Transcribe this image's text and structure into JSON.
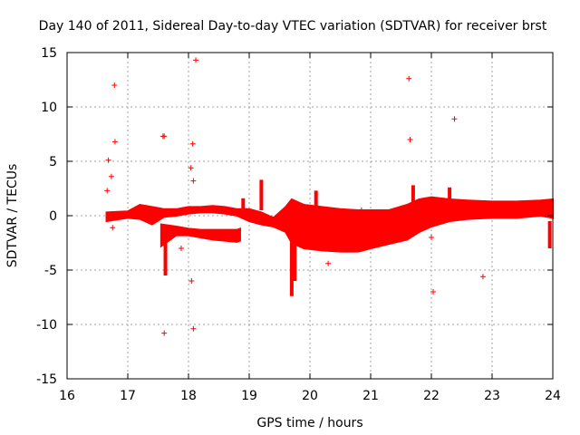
{
  "chart_data": {
    "type": "scatter",
    "title": "Day 140 of 2011, Sidereal Day-to-day VTEC variation (SDTVAR) for receiver brst",
    "xlabel": "GPS time / hours",
    "ylabel": "SDTVAR / TECUs",
    "xlim": [
      16,
      24
    ],
    "ylim": [
      -15,
      15
    ],
    "x_ticks": [
      16,
      17,
      18,
      19,
      20,
      21,
      22,
      23,
      24
    ],
    "y_ticks": [
      -15,
      -10,
      -5,
      0,
      5,
      10,
      15
    ],
    "grid": true,
    "marker": "+",
    "color": "#ff0000",
    "outliers": {
      "x": [
        16.78,
        17.6,
        18.12,
        17.58,
        18.07,
        16.68,
        16.73,
        16.66,
        16.79,
        18.04,
        18.08,
        21.63,
        21.65,
        22.38,
        22.85,
        22.0,
        22.03,
        17.88,
        18.05,
        17.6,
        18.08,
        20.3,
        16.75,
        20.85
      ],
      "y": [
        12.0,
        7.3,
        14.3,
        7.3,
        6.6,
        5.1,
        3.6,
        2.3,
        6.8,
        4.4,
        3.2,
        12.6,
        7.0,
        8.9,
        -5.6,
        -2.0,
        -7.0,
        -3.0,
        -6.0,
        -10.8,
        -10.4,
        -4.4,
        -1.1,
        0.5
      ]
    },
    "dense_bands": [
      {
        "x": [
          16.65,
          17.0,
          17.2,
          17.4,
          17.6,
          17.8,
          18.0,
          18.2,
          18.4,
          18.6,
          18.8,
          19.0,
          19.2,
          19.4,
          19.6,
          19.7,
          19.9,
          20.2,
          20.5,
          20.8,
          21.0,
          21.3,
          21.6,
          21.8,
          22.0,
          22.3,
          22.6,
          23.0,
          23.4,
          23.8,
          24.0
        ],
        "low": [
          -0.5,
          -0.2,
          -0.3,
          -0.8,
          -0.1,
          0.0,
          0.2,
          0.3,
          0.3,
          0.2,
          0.0,
          -0.5,
          -0.8,
          -1.0,
          -1.5,
          -2.5,
          -3.0,
          -3.2,
          -3.3,
          -3.3,
          -3.0,
          -2.6,
          -2.2,
          -1.5,
          -1.0,
          -0.5,
          -0.3,
          -0.2,
          -0.2,
          0.0,
          -0.2
        ],
        "high": [
          0.3,
          0.4,
          1.0,
          0.8,
          0.6,
          0.6,
          0.8,
          0.8,
          0.9,
          0.8,
          0.6,
          0.6,
          0.3,
          -0.2,
          0.8,
          1.5,
          1.0,
          0.8,
          0.6,
          0.5,
          0.5,
          0.5,
          1.0,
          1.5,
          1.7,
          1.5,
          1.4,
          1.3,
          1.3,
          1.4,
          1.5
        ]
      },
      {
        "x": [
          17.55,
          17.8,
          18.0,
          18.2,
          18.4,
          18.6,
          18.8,
          18.85
        ],
        "low": [
          -2.8,
          -1.8,
          -1.8,
          -2.0,
          -2.2,
          -2.3,
          -2.4,
          -2.3
        ],
        "high": [
          -0.8,
          -1.0,
          -1.2,
          -1.3,
          -1.3,
          -1.3,
          -1.3,
          -1.2
        ]
      }
    ],
    "spikes": [
      {
        "x": 17.62,
        "y_from": -1.5,
        "y_to": -5.5
      },
      {
        "x": 19.7,
        "y_from": -1.5,
        "y_to": -7.4
      },
      {
        "x": 19.75,
        "y_from": -2.0,
        "y_to": -6.0
      },
      {
        "x": 19.2,
        "y_from": 0.5,
        "y_to": 3.3
      },
      {
        "x": 20.1,
        "y_from": 0.5,
        "y_to": 2.3
      },
      {
        "x": 21.7,
        "y_from": 0.5,
        "y_to": 2.8
      },
      {
        "x": 23.95,
        "y_from": -0.5,
        "y_to": -3.0
      },
      {
        "x": 18.9,
        "y_from": 0.0,
        "y_to": 1.6
      },
      {
        "x": 22.3,
        "y_from": 1.0,
        "y_to": 2.6
      }
    ]
  }
}
